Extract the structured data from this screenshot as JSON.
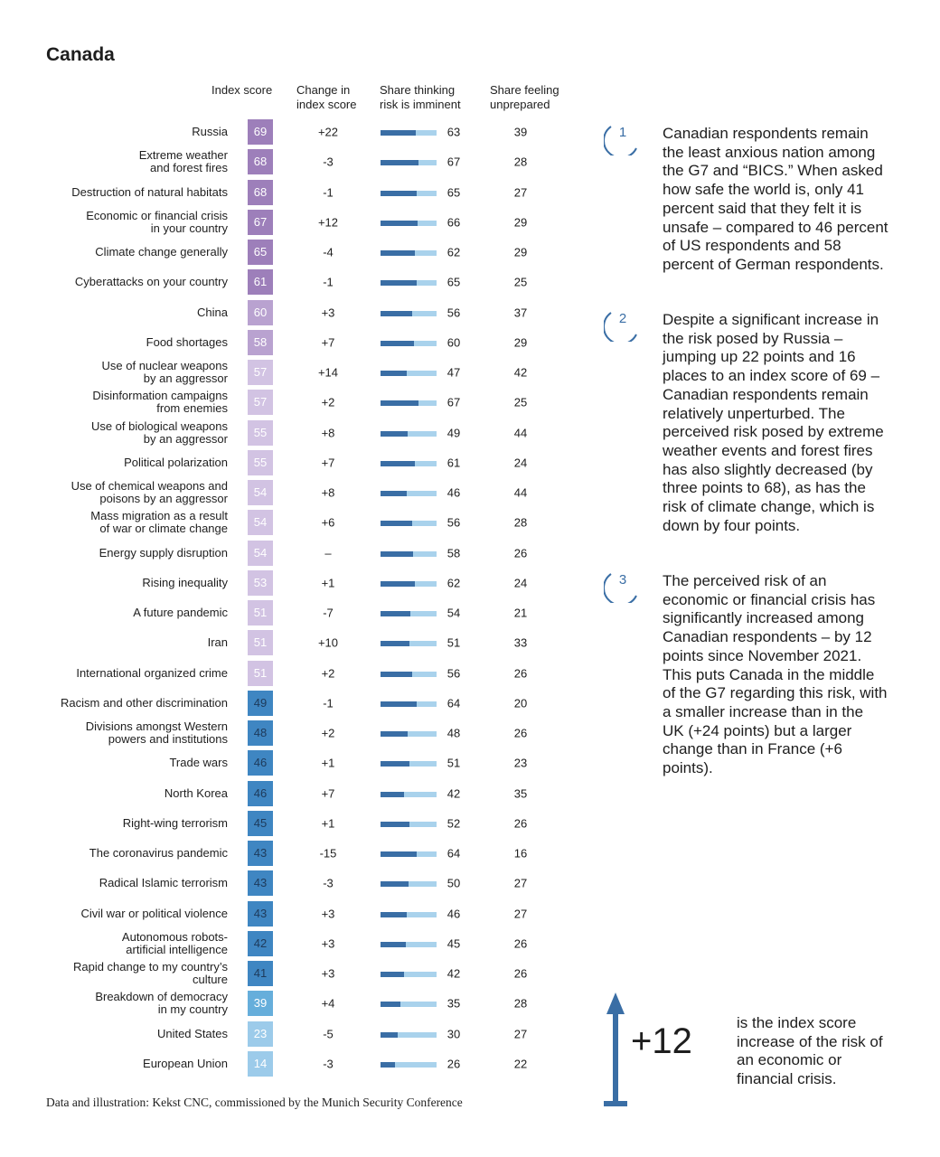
{
  "title": "Canada",
  "headers": {
    "index_score": "Index score",
    "change": "Change in\nindex score",
    "imminent": "Share thinking\nrisk is imminent",
    "unprepared": "Share feeling\nunprepared"
  },
  "colors": {
    "purple_dark": "#9d7fba",
    "purple_mid": "#b9a2d0",
    "purple_light": "#d2c3e3",
    "blue_dark": "#3f86c2",
    "blue_mid": "#66aedb",
    "blue_light": "#9ccbea",
    "bar_dark": "#3a6ea5",
    "bar_light": "#a9d2ec",
    "accent": "#3a6ea5"
  },
  "chart_data": {
    "type": "table",
    "columns": [
      "Risk",
      "Index score",
      "Change in index score",
      "Share thinking risk is imminent",
      "Share feeling unprepared"
    ],
    "rows": [
      {
        "risk": "Russia",
        "score": 69,
        "change": "+22",
        "imminent": 63,
        "unprepared": 39
      },
      {
        "risk": "Extreme weather\nand forest fires",
        "score": 68,
        "change": "-3",
        "imminent": 67,
        "unprepared": 28
      },
      {
        "risk": "Destruction of natural habitats",
        "score": 68,
        "change": "-1",
        "imminent": 65,
        "unprepared": 27
      },
      {
        "risk": "Economic or financial crisis\nin your country",
        "score": 67,
        "change": "+12",
        "imminent": 66,
        "unprepared": 29
      },
      {
        "risk": "Climate change generally",
        "score": 65,
        "change": "-4",
        "imminent": 62,
        "unprepared": 29
      },
      {
        "risk": "Cyberattacks on your country",
        "score": 61,
        "change": "-1",
        "imminent": 65,
        "unprepared": 25
      },
      {
        "risk": "China",
        "score": 60,
        "change": "+3",
        "imminent": 56,
        "unprepared": 37
      },
      {
        "risk": "Food shortages",
        "score": 58,
        "change": "+7",
        "imminent": 60,
        "unprepared": 29
      },
      {
        "risk": "Use of nuclear weapons\nby an aggressor",
        "score": 57,
        "change": "+14",
        "imminent": 47,
        "unprepared": 42
      },
      {
        "risk": "Disinformation campaigns\nfrom enemies",
        "score": 57,
        "change": "+2",
        "imminent": 67,
        "unprepared": 25
      },
      {
        "risk": "Use of biological weapons\nby an aggressor",
        "score": 55,
        "change": "+8",
        "imminent": 49,
        "unprepared": 44
      },
      {
        "risk": "Political polarization",
        "score": 55,
        "change": "+7",
        "imminent": 61,
        "unprepared": 24
      },
      {
        "risk": "Use of chemical weapons and\npoisons by an aggressor",
        "score": 54,
        "change": "+8",
        "imminent": 46,
        "unprepared": 44
      },
      {
        "risk": "Mass migration as a result\nof war or climate change",
        "score": 54,
        "change": "+6",
        "imminent": 56,
        "unprepared": 28
      },
      {
        "risk": "Energy supply disruption",
        "score": 54,
        "change": "–",
        "imminent": 58,
        "unprepared": 26
      },
      {
        "risk": "Rising inequality",
        "score": 53,
        "change": "+1",
        "imminent": 62,
        "unprepared": 24
      },
      {
        "risk": "A future pandemic",
        "score": 51,
        "change": "-7",
        "imminent": 54,
        "unprepared": 21
      },
      {
        "risk": "Iran",
        "score": 51,
        "change": "+10",
        "imminent": 51,
        "unprepared": 33
      },
      {
        "risk": "International organized crime",
        "score": 51,
        "change": "+2",
        "imminent": 56,
        "unprepared": 26
      },
      {
        "risk": "Racism and other discrimination",
        "score": 49,
        "change": "-1",
        "imminent": 64,
        "unprepared": 20
      },
      {
        "risk": "Divisions amongst Western\npowers and institutions",
        "score": 48,
        "change": "+2",
        "imminent": 48,
        "unprepared": 26
      },
      {
        "risk": "Trade wars",
        "score": 46,
        "change": "+1",
        "imminent": 51,
        "unprepared": 23
      },
      {
        "risk": "North Korea",
        "score": 46,
        "change": "+7",
        "imminent": 42,
        "unprepared": 35
      },
      {
        "risk": "Right-wing terrorism",
        "score": 45,
        "change": "+1",
        "imminent": 52,
        "unprepared": 26
      },
      {
        "risk": "The coronavirus pandemic",
        "score": 43,
        "change": "-15",
        "imminent": 64,
        "unprepared": 16
      },
      {
        "risk": "Radical Islamic terrorism",
        "score": 43,
        "change": "-3",
        "imminent": 50,
        "unprepared": 27
      },
      {
        "risk": "Civil war or political violence",
        "score": 43,
        "change": "+3",
        "imminent": 46,
        "unprepared": 27
      },
      {
        "risk": "Autonomous robots-\nartificial intelligence",
        "score": 42,
        "change": "+3",
        "imminent": 45,
        "unprepared": 26
      },
      {
        "risk": "Rapid change to my country’s\nculture",
        "score": 41,
        "change": "+3",
        "imminent": 42,
        "unprepared": 26
      },
      {
        "risk": "Breakdown of democracy\nin my country",
        "score": 39,
        "change": "+4",
        "imminent": 35,
        "unprepared": 28
      },
      {
        "risk": "United States",
        "score": 23,
        "change": "-5",
        "imminent": 30,
        "unprepared": 27
      },
      {
        "risk": "European Union",
        "score": 14,
        "change": "-3",
        "imminent": 26,
        "unprepared": 22
      }
    ]
  },
  "notes": [
    {
      "number": "1",
      "text": "Canadian respondents remain the least anxious nation among the G7 and “BICS.” When asked how safe the world is, only 41 percent said that they felt it is unsafe – compared to 46 percent of US respondents and 58 percent of German respondents."
    },
    {
      "number": "2",
      "text": "Despite a significant increase in the risk posed by Russia – jumping up 22 points and 16 places to an index score of 69 – Canadian respondents remain relatively unperturbed. The perceived risk posed by extreme weather events and forest fires has also slightly decreased (by three points to 68), as has the risk of climate change, which is down by four points."
    },
    {
      "number": "3",
      "text": "The perceived risk of an economic or financial crisis has significantly increased among Canadian respondents – by 12 points since November 2021. This puts Canada in the middle of the G7 regarding this risk, with a smaller increase than in the UK (+24 points) but a larger change than in France (+6 points)."
    }
  ],
  "highlight": {
    "value": "+12",
    "text": "is the index score increase of the risk of an economic or financial crisis."
  },
  "source": "Data and illustration: Kekst CNC, commissioned by the Munich Security Conference"
}
